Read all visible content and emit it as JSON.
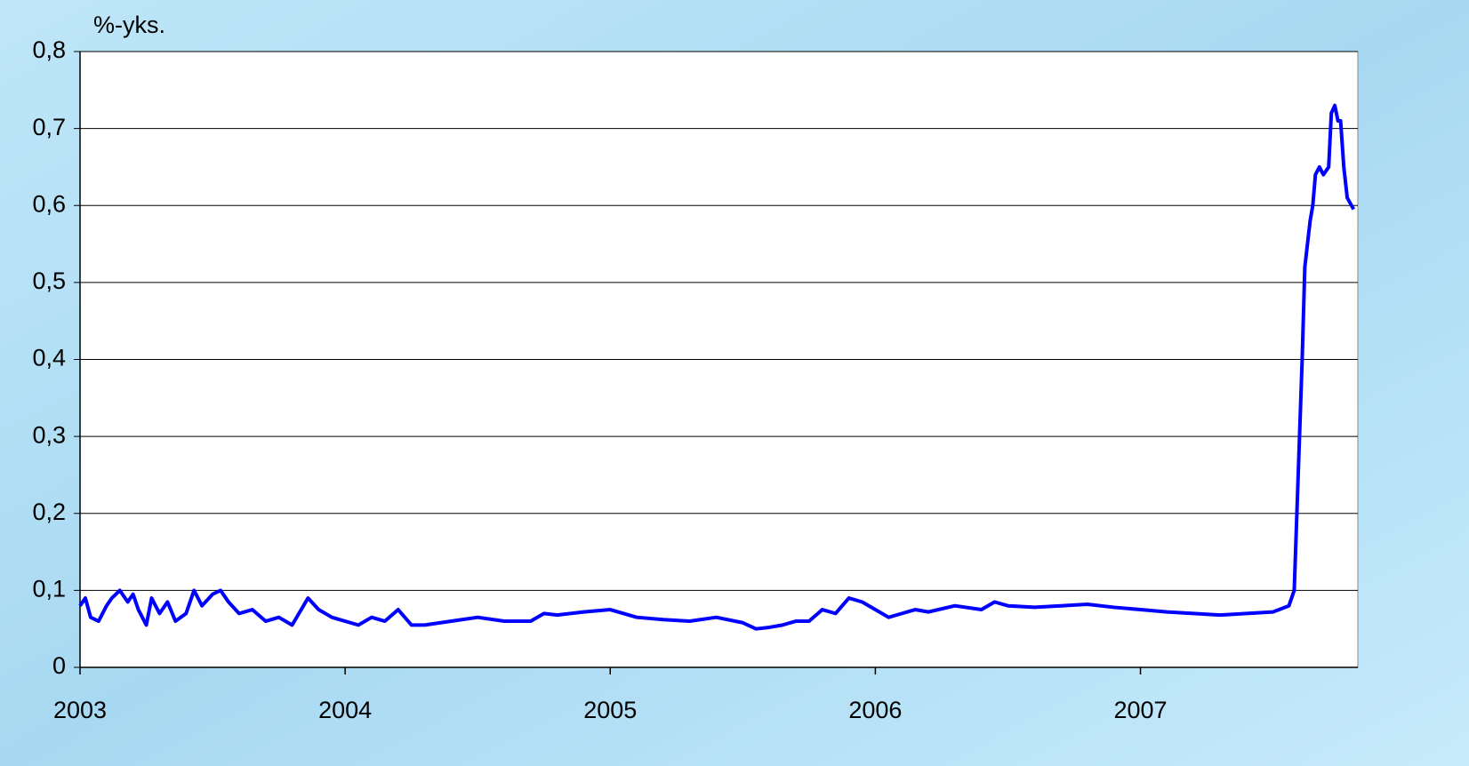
{
  "chart_data": {
    "type": "line",
    "y_label": "%-yks.",
    "x": [
      2003.0,
      2003.02,
      2003.04,
      2003.07,
      2003.1,
      2003.12,
      2003.15,
      2003.18,
      2003.2,
      2003.22,
      2003.25,
      2003.27,
      2003.3,
      2003.33,
      2003.36,
      2003.4,
      2003.43,
      2003.46,
      2003.5,
      2003.53,
      2003.56,
      2003.6,
      2003.65,
      2003.7,
      2003.75,
      2003.8,
      2003.86,
      2003.9,
      2003.95,
      2004.0,
      2004.05,
      2004.1,
      2004.15,
      2004.2,
      2004.25,
      2004.3,
      2004.4,
      2004.5,
      2004.6,
      2004.7,
      2004.75,
      2004.8,
      2004.9,
      2005.0,
      2005.1,
      2005.2,
      2005.3,
      2005.4,
      2005.5,
      2005.55,
      2005.6,
      2005.65,
      2005.7,
      2005.75,
      2005.8,
      2005.85,
      2005.9,
      2005.95,
      2006.0,
      2006.05,
      2006.1,
      2006.15,
      2006.2,
      2006.3,
      2006.4,
      2006.45,
      2006.5,
      2006.6,
      2006.7,
      2006.8,
      2006.9,
      2007.0,
      2007.1,
      2007.2,
      2007.3,
      2007.4,
      2007.5,
      2007.56,
      2007.58,
      2007.596,
      2007.61,
      2007.62,
      2007.63,
      2007.64,
      2007.65,
      2007.66,
      2007.675,
      2007.69,
      2007.71,
      2007.72,
      2007.733,
      2007.745,
      2007.755,
      2007.767,
      2007.78,
      2007.804
    ],
    "series": [
      {
        "name": "%-yks.",
        "color": "#0000ff",
        "values": [
          0.08,
          0.09,
          0.065,
          0.06,
          0.08,
          0.09,
          0.1,
          0.085,
          0.095,
          0.075,
          0.055,
          0.09,
          0.07,
          0.085,
          0.06,
          0.07,
          0.1,
          0.08,
          0.095,
          0.1,
          0.085,
          0.07,
          0.075,
          0.06,
          0.065,
          0.055,
          0.09,
          0.075,
          0.065,
          0.06,
          0.055,
          0.065,
          0.06,
          0.075,
          0.055,
          0.055,
          0.06,
          0.065,
          0.06,
          0.06,
          0.07,
          0.068,
          0.072,
          0.075,
          0.065,
          0.062,
          0.06,
          0.065,
          0.058,
          0.05,
          0.052,
          0.055,
          0.06,
          0.06,
          0.075,
          0.07,
          0.09,
          0.085,
          0.075,
          0.065,
          0.07,
          0.075,
          0.072,
          0.08,
          0.075,
          0.085,
          0.08,
          0.078,
          0.08,
          0.082,
          0.078,
          0.075,
          0.072,
          0.07,
          0.068,
          0.07,
          0.072,
          0.08,
          0.1,
          0.26,
          0.4,
          0.52,
          0.55,
          0.58,
          0.6,
          0.64,
          0.65,
          0.64,
          0.65,
          0.72,
          0.73,
          0.71,
          0.71,
          0.65,
          0.61,
          0.595
        ]
      }
    ],
    "xlim": [
      2003,
      2007.82
    ],
    "xticks": [
      2003,
      2004,
      2005,
      2006,
      2007
    ],
    "ylim": [
      0,
      0.8
    ],
    "yticks": [
      0,
      {
        "value": 0.1,
        "label": "0,1"
      },
      {
        "value": 0.2,
        "label": "0,2"
      },
      {
        "value": 0.3,
        "label": "0,3"
      },
      {
        "value": 0.4,
        "label": "0,4"
      },
      {
        "value": 0.5,
        "label": "0,5"
      },
      {
        "value": 0.6,
        "label": "0,6"
      },
      {
        "value": 0.7,
        "label": "0,7"
      },
      {
        "value": 0.8,
        "label": "0,8"
      }
    ],
    "grid": true
  }
}
